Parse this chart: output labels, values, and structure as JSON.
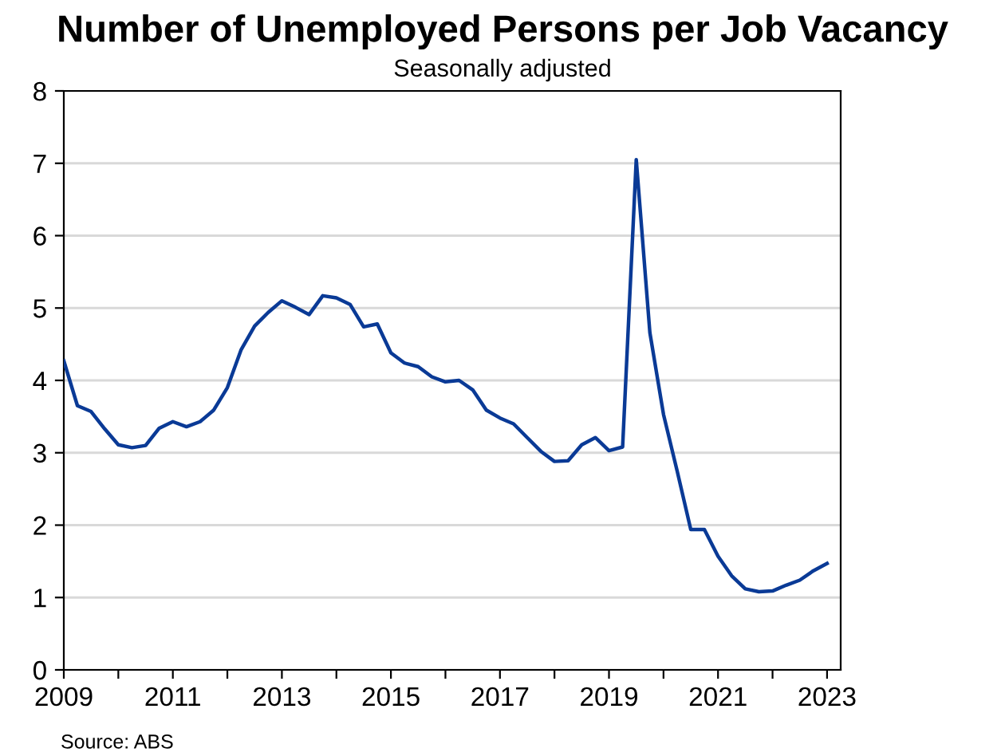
{
  "chart_data": {
    "type": "line",
    "title": "Number of Unemployed Persons per Job Vacancy",
    "subtitle": "Seasonally adjusted",
    "annotations": [
      "Source: ABS"
    ],
    "x": [
      2009.0,
      2009.25,
      2009.5,
      2009.75,
      2010.0,
      2010.25,
      2010.5,
      2010.75,
      2011.0,
      2011.25,
      2011.5,
      2011.75,
      2012.0,
      2012.25,
      2012.5,
      2012.75,
      2013.0,
      2013.25,
      2013.5,
      2013.75,
      2014.0,
      2014.25,
      2014.5,
      2014.75,
      2015.0,
      2015.25,
      2015.5,
      2015.75,
      2016.0,
      2016.25,
      2016.5,
      2016.75,
      2017.0,
      2017.25,
      2017.5,
      2017.75,
      2018.0,
      2018.25,
      2018.5,
      2018.75,
      2019.0,
      2019.25,
      2019.5,
      2019.75,
      2020.0,
      2020.25,
      2020.5,
      2020.75,
      2021.0,
      2021.25,
      2021.5,
      2021.75,
      2022.0,
      2022.25,
      2022.5,
      2022.75,
      2023.0
    ],
    "series": [
      {
        "color": "#0a3a96",
        "values": [
          4.27,
          3.65,
          3.57,
          3.33,
          3.11,
          3.07,
          3.1,
          3.34,
          3.43,
          3.36,
          3.43,
          3.59,
          3.9,
          4.42,
          4.75,
          4.94,
          5.1,
          5.01,
          4.91,
          5.17,
          5.14,
          5.05,
          4.74,
          4.78,
          4.38,
          4.24,
          4.19,
          4.05,
          3.98,
          4.0,
          3.87,
          3.59,
          3.48,
          3.4,
          3.21,
          3.02,
          2.88,
          2.89,
          3.11,
          3.21,
          3.03,
          3.08,
          7.05,
          4.66,
          3.53,
          2.75,
          1.94,
          1.94,
          1.57,
          1.3,
          1.12,
          1.08,
          1.09,
          1.17,
          1.24,
          1.37,
          1.47
        ]
      }
    ],
    "xlim": [
      2009,
      2023.25
    ],
    "xticks": [
      2009,
      {
        "value": 2010,
        "label": null
      },
      2011,
      {
        "value": 2012,
        "label": null
      },
      2013,
      {
        "value": 2014,
        "label": null
      },
      2015,
      {
        "value": 2016,
        "label": null
      },
      2017,
      {
        "value": 2018,
        "label": null
      },
      2019,
      {
        "value": 2020,
        "label": null
      },
      2021,
      {
        "value": 2022,
        "label": null
      },
      2023
    ],
    "ylim": [
      0,
      8
    ],
    "yticks": [
      0,
      1,
      2,
      3,
      4,
      5,
      6,
      7,
      8
    ],
    "grid": "y",
    "marker": "none",
    "line_style": "solid"
  }
}
